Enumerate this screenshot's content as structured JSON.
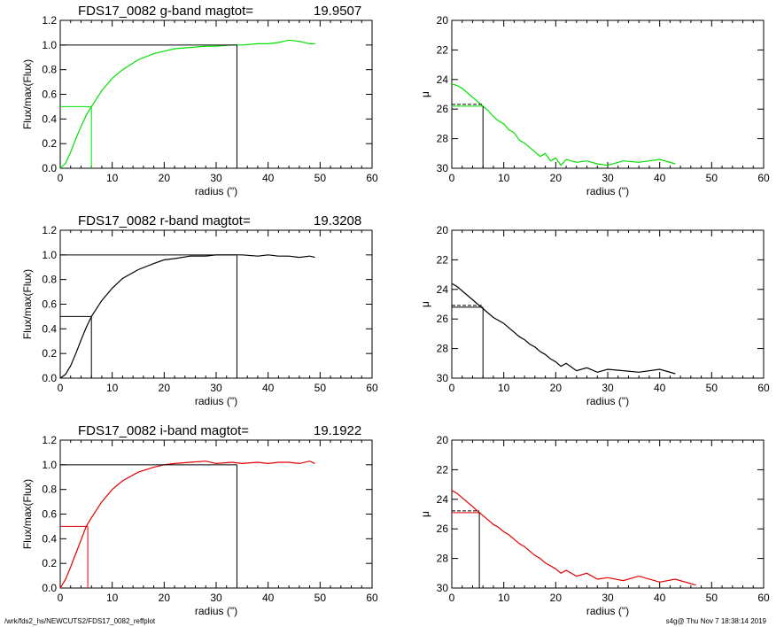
{
  "footer": {
    "left": "/wrk/fds2_hs/NEWCUTS2/FDS17_0082_reffplot",
    "right": "s4g@  Thu Nov  7 18:38:14 2019"
  },
  "chart_data": [
    {
      "type": "line",
      "band": "g",
      "title": "FDS17_0082 g-band  magtot=",
      "title_value": "19.9507",
      "xlabel": "radius (\")",
      "ylabel": "Flux/max(Flux)",
      "xlim": [
        0,
        60
      ],
      "ylim": [
        0,
        1.2
      ],
      "xticks": [
        "0",
        "10",
        "20",
        "30",
        "40",
        "50",
        "60"
      ],
      "yticks": [
        "0.0",
        "0.2",
        "0.4",
        "0.6",
        "0.8",
        "1.0",
        "1.2"
      ],
      "color": "#00e000",
      "series": [
        {
          "x": [
            0,
            1,
            2,
            3,
            4,
            5,
            6,
            8,
            10,
            12,
            15,
            18,
            20,
            22,
            25,
            28,
            30,
            33,
            35,
            38,
            40,
            42,
            44,
            46,
            48,
            49
          ],
          "y": [
            0,
            0.04,
            0.13,
            0.24,
            0.34,
            0.43,
            0.5,
            0.63,
            0.73,
            0.8,
            0.88,
            0.93,
            0.95,
            0.97,
            0.98,
            0.99,
            0.99,
            1.0,
            1.0,
            1.01,
            1.01,
            1.02,
            1.04,
            1.03,
            1.01,
            1.01
          ]
        }
      ],
      "half_light_radius": 6.0,
      "total_radius": 34.0,
      "reference_color": "#000000"
    },
    {
      "type": "line",
      "band": "g",
      "title": "",
      "xlabel": "radius (\")",
      "ylabel": "μ",
      "xlim": [
        0,
        60
      ],
      "ylim": [
        30,
        20
      ],
      "xticks": [
        "0",
        "10",
        "20",
        "30",
        "40",
        "50",
        "60"
      ],
      "yticks": [
        "20",
        "22",
        "24",
        "26",
        "28",
        "30"
      ],
      "color": "#00e000",
      "series": [
        {
          "x": [
            0,
            1,
            2,
            3,
            4,
            5,
            6,
            7,
            8,
            9,
            10,
            11,
            12,
            13,
            14,
            15,
            16,
            17,
            18,
            19,
            20,
            21,
            22,
            24,
            26,
            28,
            30,
            33,
            36,
            40,
            43
          ],
          "y": [
            24.3,
            24.4,
            24.6,
            24.9,
            25.2,
            25.5,
            25.8,
            26.1,
            26.5,
            26.8,
            27.0,
            27.4,
            27.6,
            28.1,
            28.3,
            28.6,
            28.9,
            29.2,
            29.0,
            29.5,
            29.3,
            29.8,
            29.4,
            29.6,
            29.5,
            29.7,
            29.8,
            29.5,
            29.6,
            29.4,
            29.7
          ]
        }
      ],
      "mu_at_half_light": 25.8,
      "half_light_radius": 6.0
    },
    {
      "type": "line",
      "band": "r",
      "title": "FDS17_0082 r-band  magtot=",
      "title_value": "19.3208",
      "xlabel": "radius (\")",
      "ylabel": "Flux/max(Flux)",
      "xlim": [
        0,
        60
      ],
      "ylim": [
        0,
        1.2
      ],
      "xticks": [
        "0",
        "10",
        "20",
        "30",
        "40",
        "50",
        "60"
      ],
      "yticks": [
        "0.0",
        "0.2",
        "0.4",
        "0.6",
        "0.8",
        "1.0",
        "1.2"
      ],
      "color": "#000000",
      "series": [
        {
          "x": [
            0,
            1,
            2,
            3,
            4,
            5,
            6,
            8,
            10,
            12,
            15,
            18,
            20,
            22,
            25,
            28,
            30,
            33,
            35,
            38,
            40,
            42,
            44,
            46,
            48,
            49
          ],
          "y": [
            0,
            0.03,
            0.1,
            0.2,
            0.31,
            0.41,
            0.5,
            0.63,
            0.73,
            0.81,
            0.88,
            0.93,
            0.96,
            0.97,
            0.99,
            0.99,
            1.0,
            1.0,
            1.0,
            0.99,
            1.0,
            0.99,
            0.99,
            0.98,
            0.99,
            0.98
          ]
        }
      ],
      "half_light_radius": 6.0,
      "total_radius": 34.0,
      "reference_color": "#000000"
    },
    {
      "type": "line",
      "band": "r",
      "title": "",
      "xlabel": "radius (\")",
      "ylabel": "μ",
      "xlim": [
        0,
        60
      ],
      "ylim": [
        30,
        20
      ],
      "xticks": [
        "0",
        "10",
        "20",
        "30",
        "40",
        "50",
        "60"
      ],
      "yticks": [
        "20",
        "22",
        "24",
        "26",
        "28",
        "30"
      ],
      "color": "#000000",
      "series": [
        {
          "x": [
            0,
            1,
            2,
            3,
            4,
            5,
            6,
            7,
            8,
            9,
            10,
            11,
            12,
            13,
            14,
            15,
            16,
            17,
            18,
            19,
            20,
            21,
            22,
            24,
            26,
            28,
            30,
            33,
            36,
            40,
            43
          ],
          "y": [
            23.6,
            23.8,
            24.1,
            24.4,
            24.7,
            25.0,
            25.3,
            25.6,
            25.9,
            26.1,
            26.3,
            26.6,
            26.9,
            27.2,
            27.4,
            27.7,
            27.9,
            28.2,
            28.4,
            28.7,
            28.9,
            29.2,
            29.0,
            29.5,
            29.3,
            29.6,
            29.4,
            29.5,
            29.6,
            29.4,
            29.7
          ]
        }
      ],
      "mu_at_half_light": 25.2,
      "half_light_radius": 6.0
    },
    {
      "type": "line",
      "band": "i",
      "title": "FDS17_0082 i-band  magtot=",
      "title_value": "19.1922",
      "xlabel": "radius (\")",
      "ylabel": "Flux/max(Flux)",
      "xlim": [
        0,
        60
      ],
      "ylim": [
        0,
        1.2
      ],
      "xticks": [
        "0",
        "10",
        "20",
        "30",
        "40",
        "50",
        "60"
      ],
      "yticks": [
        "0.0",
        "0.2",
        "0.4",
        "0.6",
        "0.8",
        "1.0",
        "1.2"
      ],
      "color": "#e00000",
      "series": [
        {
          "x": [
            0,
            1,
            2,
            3,
            4,
            5,
            6,
            8,
            10,
            12,
            15,
            18,
            20,
            22,
            25,
            28,
            30,
            33,
            35,
            38,
            40,
            42,
            44,
            46,
            48,
            49
          ],
          "y": [
            0,
            0.07,
            0.17,
            0.28,
            0.39,
            0.5,
            0.57,
            0.7,
            0.8,
            0.87,
            0.94,
            0.98,
            1.0,
            1.01,
            1.02,
            1.03,
            1.01,
            1.02,
            1.01,
            1.02,
            1.01,
            1.02,
            1.02,
            1.01,
            1.03,
            1.01
          ]
        }
      ],
      "half_light_radius": 5.3,
      "total_radius": 34.0,
      "reference_color": "#000000"
    },
    {
      "type": "line",
      "band": "i",
      "title": "",
      "xlabel": "radius (\")",
      "ylabel": "μ",
      "xlim": [
        0,
        60
      ],
      "ylim": [
        30,
        20
      ],
      "xticks": [
        "0",
        "10",
        "20",
        "30",
        "40",
        "50",
        "60"
      ],
      "yticks": [
        "20",
        "22",
        "24",
        "26",
        "28",
        "30"
      ],
      "color": "#e00000",
      "series": [
        {
          "x": [
            0,
            1,
            2,
            3,
            4,
            5,
            6,
            7,
            8,
            9,
            10,
            11,
            12,
            13,
            14,
            15,
            16,
            17,
            18,
            19,
            20,
            21,
            22,
            24,
            26,
            28,
            30,
            33,
            36,
            40,
            43,
            47
          ],
          "y": [
            23.4,
            23.6,
            23.9,
            24.2,
            24.5,
            24.8,
            25.1,
            25.4,
            25.7,
            25.9,
            26.2,
            26.4,
            26.7,
            27.0,
            27.2,
            27.5,
            27.8,
            28.0,
            28.3,
            28.5,
            28.7,
            29.0,
            28.8,
            29.2,
            29.0,
            29.4,
            29.3,
            29.5,
            29.2,
            29.6,
            29.4,
            29.8
          ]
        }
      ],
      "mu_at_half_light": 24.9,
      "half_light_radius": 5.3
    }
  ]
}
